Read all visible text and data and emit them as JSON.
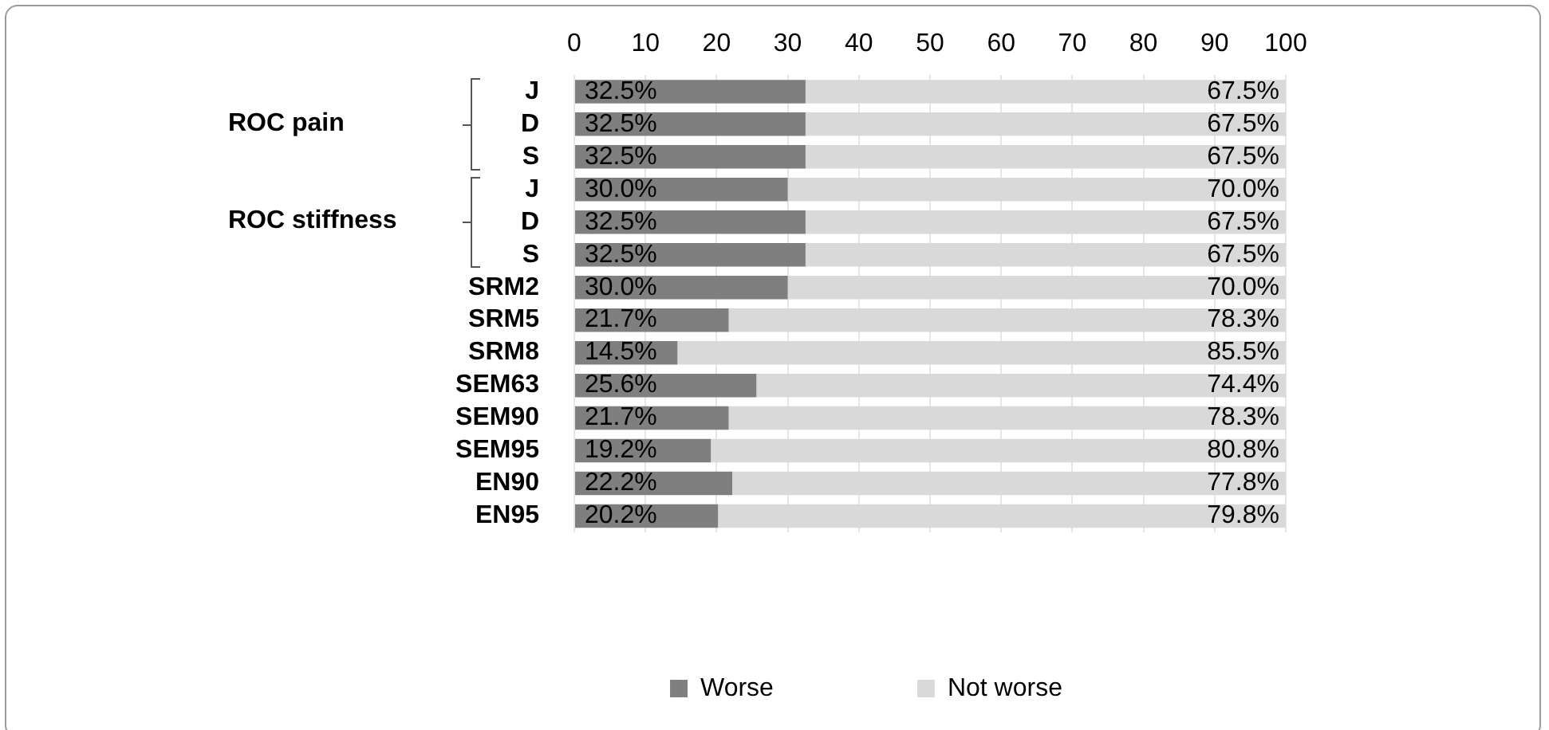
{
  "chart_data": {
    "type": "bar",
    "orientation": "horizontal",
    "stacked": true,
    "categories": [
      "J",
      "D",
      "S",
      "J",
      "D",
      "S",
      "SRM2",
      "SRM5",
      "SRM8",
      "SEM63",
      "SEM90",
      "SEM95",
      "EN90",
      "EN95"
    ],
    "series": [
      {
        "name": "Worse",
        "color": "#7f7f7f",
        "values": [
          32.5,
          32.5,
          32.5,
          30.0,
          32.5,
          32.5,
          30.0,
          21.7,
          14.5,
          25.6,
          21.7,
          19.2,
          22.2,
          20.2
        ],
        "value_labels": [
          "32.5%",
          "32.5%",
          "32.5%",
          "30.0%",
          "32.5%",
          "32.5%",
          "30.0%",
          "21.7%",
          "14.5%",
          "25.6%",
          "21.7%",
          "19.2%",
          "22.2%",
          "20.2%"
        ]
      },
      {
        "name": "Not worse",
        "color": "#d9d9d9",
        "values": [
          67.5,
          67.5,
          67.5,
          70.0,
          67.5,
          67.5,
          70.0,
          78.3,
          85.5,
          74.4,
          78.3,
          80.8,
          77.8,
          79.8
        ],
        "value_labels": [
          "67.5%",
          "67.5%",
          "67.5%",
          "70.0%",
          "67.5%",
          "67.5%",
          "70.0%",
          "78.3%",
          "85.5%",
          "74.4%",
          "78.3%",
          "80.8%",
          "77.8%",
          "79.8%"
        ]
      }
    ],
    "xlim": [
      0,
      100
    ],
    "xticks": [
      0,
      10,
      20,
      30,
      40,
      50,
      60,
      70,
      80,
      90,
      100
    ],
    "annotations": [
      "ROC pain",
      "ROC stiffness"
    ],
    "grid": "x",
    "legend": "bottom"
  }
}
